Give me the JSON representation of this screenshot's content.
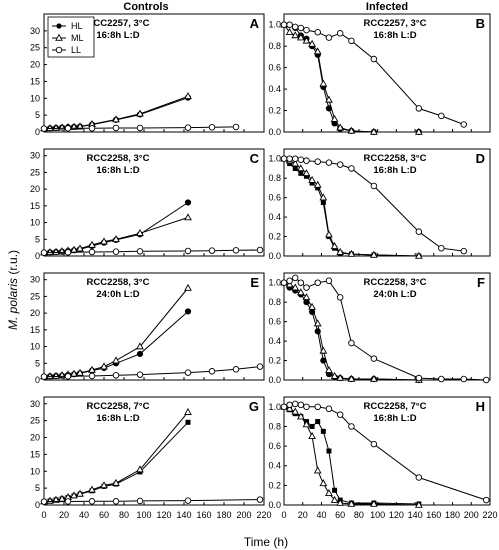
{
  "figure": {
    "col_titles": [
      "Controls",
      "Infected"
    ],
    "ylabel_italic": "M. polaris",
    "ylabel_rest": " (r.u.)",
    "xlabel": "Time (h)",
    "legend": [
      "HL",
      "ML",
      "LL"
    ],
    "x_ticks": [
      0,
      20,
      40,
      60,
      80,
      100,
      120,
      140,
      160,
      180,
      200,
      220
    ],
    "control_ticks": [
      0,
      5,
      10,
      15,
      20,
      25,
      30
    ],
    "infected_ticks": [
      "0.0",
      "0.2",
      "0.4",
      "0.6",
      "0.8",
      "1.0"
    ]
  },
  "chart_data": [
    {
      "type": "line",
      "panel": "A",
      "title_line1": "RCC2257, 3°C",
      "title_line2": "16:8h L:D",
      "xlim": [
        0,
        220
      ],
      "ylim": [
        0,
        35
      ],
      "series": [
        {
          "name": "HL",
          "marker": "filled-circle",
          "x": [
            0,
            6,
            12,
            18,
            24,
            30,
            36,
            48,
            72,
            96,
            144
          ],
          "y": [
            1,
            1.1,
            1.2,
            1.3,
            1.4,
            1.5,
            1.6,
            2.2,
            3.6,
            5.2,
            10.2
          ]
        },
        {
          "name": "ML",
          "marker": "open-triangle",
          "x": [
            0,
            6,
            12,
            18,
            24,
            30,
            36,
            48,
            72,
            96,
            144
          ],
          "y": [
            1,
            1.1,
            1.2,
            1.3,
            1.4,
            1.5,
            1.6,
            2.3,
            3.7,
            5.4,
            10.6
          ]
        },
        {
          "name": "LL",
          "marker": "open-circle",
          "x": [
            0,
            24,
            48,
            72,
            96,
            144,
            168,
            192
          ],
          "y": [
            1,
            1.1,
            1.1,
            1.2,
            1.2,
            1.3,
            1.4,
            1.5
          ]
        }
      ]
    },
    {
      "type": "line",
      "panel": "B",
      "title_line1": "RCC2257, 3°C",
      "title_line2": "16:8h L:D",
      "xlim": [
        0,
        220
      ],
      "ylim": [
        0,
        1.1
      ],
      "series": [
        {
          "name": "HL",
          "marker": "filled-circle",
          "x": [
            0,
            6,
            12,
            18,
            24,
            30,
            36,
            42,
            48,
            54,
            60,
            72,
            96,
            144
          ],
          "y": [
            1,
            1,
            0.97,
            0.9,
            0.87,
            0.8,
            0.72,
            0.42,
            0.22,
            0.08,
            0.03,
            0.01,
            0,
            0
          ]
        },
        {
          "name": "ML",
          "marker": "open-triangle",
          "x": [
            0,
            6,
            12,
            18,
            24,
            30,
            36,
            42,
            48,
            54,
            60,
            72,
            96,
            144
          ],
          "y": [
            1,
            0.93,
            0.9,
            0.88,
            0.85,
            0.82,
            0.75,
            0.45,
            0.3,
            0.12,
            0.04,
            0.01,
            0,
            0
          ]
        },
        {
          "name": "LL",
          "marker": "open-circle",
          "x": [
            0,
            6,
            12,
            18,
            24,
            36,
            48,
            60,
            72,
            96,
            144,
            168,
            192
          ],
          "y": [
            1,
            1,
            0.98,
            0.97,
            0.95,
            0.93,
            0.88,
            0.92,
            0.85,
            0.68,
            0.22,
            0.15,
            0.07
          ]
        }
      ]
    },
    {
      "type": "line",
      "panel": "C",
      "title_line1": "RCC2258, 3°C",
      "title_line2": "16:8h L:D",
      "xlim": [
        0,
        220
      ],
      "ylim": [
        0,
        32
      ],
      "series": [
        {
          "name": "HL",
          "marker": "filled-circle",
          "x": [
            0,
            6,
            12,
            18,
            24,
            30,
            36,
            48,
            60,
            72,
            96,
            144
          ],
          "y": [
            1,
            1.1,
            1.2,
            1.3,
            1.5,
            1.7,
            2,
            3,
            4,
            4.8,
            6.5,
            16
          ]
        },
        {
          "name": "ML",
          "marker": "open-triangle",
          "x": [
            0,
            6,
            12,
            18,
            24,
            30,
            36,
            48,
            60,
            72,
            96,
            144
          ],
          "y": [
            1,
            1.1,
            1.2,
            1.4,
            1.6,
            1.8,
            2.2,
            3.3,
            4.3,
            5,
            6.8,
            11.5
          ]
        },
        {
          "name": "LL",
          "marker": "open-circle",
          "x": [
            0,
            24,
            48,
            72,
            96,
            144,
            168,
            192,
            216
          ],
          "y": [
            1,
            1.1,
            1.2,
            1.3,
            1.4,
            1.5,
            1.6,
            1.7,
            1.8
          ]
        }
      ]
    },
    {
      "type": "line",
      "panel": "D",
      "title_line1": "RCC2258, 3°C",
      "title_line2": "16:8h L:D",
      "xlim": [
        0,
        220
      ],
      "ylim": [
        0,
        1.1
      ],
      "series": [
        {
          "name": "HL",
          "marker": "filled-square",
          "x": [
            0,
            6,
            12,
            18,
            24,
            30,
            36,
            42,
            48,
            54,
            60,
            72,
            96,
            144
          ],
          "y": [
            1,
            0.95,
            0.9,
            0.85,
            0.82,
            0.75,
            0.7,
            0.55,
            0.2,
            0.08,
            0.03,
            0.02,
            0.01,
            0
          ]
        },
        {
          "name": "ML",
          "marker": "open-triangle",
          "x": [
            0,
            6,
            12,
            18,
            24,
            30,
            36,
            42,
            48,
            54,
            60,
            72,
            96,
            144
          ],
          "y": [
            1,
            0.98,
            0.95,
            0.9,
            0.85,
            0.78,
            0.73,
            0.6,
            0.22,
            0.1,
            0.04,
            0.02,
            0.01,
            0
          ]
        },
        {
          "name": "LL",
          "marker": "open-circle",
          "x": [
            0,
            6,
            12,
            18,
            24,
            36,
            48,
            60,
            72,
            96,
            144,
            168,
            192
          ],
          "y": [
            1,
            1,
            1,
            0.99,
            0.98,
            0.97,
            0.96,
            0.94,
            0.9,
            0.72,
            0.25,
            0.08,
            0.05
          ]
        }
      ]
    },
    {
      "type": "line",
      "panel": "E",
      "title_line1": "RCC2258, 3°C",
      "title_line2": "24:0h L:D",
      "xlim": [
        0,
        220
      ],
      "ylim": [
        0,
        32
      ],
      "series": [
        {
          "name": "HL",
          "marker": "filled-circle",
          "x": [
            0,
            6,
            12,
            18,
            24,
            30,
            36,
            48,
            60,
            72,
            96,
            144
          ],
          "y": [
            1,
            1.1,
            1.2,
            1.3,
            1.5,
            1.7,
            2,
            2.8,
            3.6,
            5,
            7.8,
            20.5
          ]
        },
        {
          "name": "ML",
          "marker": "open-triangle",
          "x": [
            0,
            6,
            12,
            18,
            24,
            30,
            36,
            48,
            60,
            72,
            96,
            144
          ],
          "y": [
            1,
            1.1,
            1.2,
            1.4,
            1.6,
            1.8,
            2.1,
            3,
            4,
            5.8,
            10,
            27.5
          ]
        },
        {
          "name": "LL",
          "marker": "open-circle",
          "x": [
            0,
            24,
            48,
            72,
            96,
            144,
            168,
            192,
            216
          ],
          "y": [
            1,
            1.1,
            1.2,
            1.4,
            1.6,
            2.2,
            2.6,
            3.2,
            4
          ]
        }
      ]
    },
    {
      "type": "line",
      "panel": "F",
      "title_line1": "RCC2258, 3°C",
      "title_line2": "24:0h L:D",
      "xlim": [
        0,
        220
      ],
      "ylim": [
        0,
        1.1
      ],
      "series": [
        {
          "name": "HL",
          "marker": "filled-circle",
          "x": [
            0,
            6,
            12,
            18,
            24,
            30,
            36,
            42,
            48,
            54,
            60,
            72,
            96,
            144
          ],
          "y": [
            1,
            0.95,
            0.92,
            0.88,
            0.8,
            0.7,
            0.5,
            0.2,
            0.06,
            0.03,
            0.02,
            0.01,
            0.01,
            0
          ]
        },
        {
          "name": "ML",
          "marker": "open-triangle",
          "x": [
            0,
            6,
            12,
            18,
            24,
            30,
            36,
            42,
            48,
            54,
            60,
            72,
            96,
            144
          ],
          "y": [
            1,
            0.98,
            0.95,
            0.9,
            0.85,
            0.75,
            0.58,
            0.3,
            0.1,
            0.04,
            0.02,
            0.01,
            0.01,
            0
          ]
        },
        {
          "name": "LL",
          "marker": "open-circle",
          "x": [
            0,
            6,
            12,
            18,
            24,
            36,
            48,
            60,
            72,
            96,
            144,
            168,
            192,
            216
          ],
          "y": [
            1,
            1.02,
            1.05,
            1,
            0.95,
            1,
            1.02,
            0.85,
            0.38,
            0.22,
            0.02,
            0.01,
            0.01,
            0
          ]
        }
      ]
    },
    {
      "type": "line",
      "panel": "G",
      "title_line1": "RCC2258, 7°C",
      "title_line2": "16:8h L:D",
      "xlim": [
        0,
        220
      ],
      "ylim": [
        0,
        32
      ],
      "series": [
        {
          "name": "HL",
          "marker": "filled-square",
          "x": [
            0,
            6,
            12,
            18,
            24,
            30,
            36,
            48,
            60,
            72,
            96,
            144
          ],
          "y": [
            1,
            1.2,
            1.5,
            1.8,
            2.2,
            2.7,
            3.2,
            4.2,
            5.5,
            6.2,
            9.8,
            24.5
          ]
        },
        {
          "name": "ML",
          "marker": "open-triangle",
          "x": [
            0,
            6,
            12,
            18,
            24,
            30,
            36,
            48,
            60,
            72,
            96,
            144
          ],
          "y": [
            1,
            1.2,
            1.5,
            1.8,
            2.3,
            2.8,
            3.3,
            4.5,
            5.8,
            6.5,
            10.5,
            27.5
          ]
        },
        {
          "name": "LL",
          "marker": "open-circle",
          "x": [
            0,
            24,
            48,
            72,
            96,
            144,
            216
          ],
          "y": [
            1,
            1.05,
            1.1,
            1.1,
            1.2,
            1.3,
            1.6
          ]
        }
      ]
    },
    {
      "type": "line",
      "panel": "H",
      "title_line1": "RCC2258, 7°C",
      "title_line2": "16:8h L:D",
      "xlim": [
        0,
        220
      ],
      "ylim": [
        0,
        1.1
      ],
      "series": [
        {
          "name": "HL",
          "marker": "filled-square",
          "x": [
            0,
            6,
            12,
            18,
            24,
            30,
            36,
            42,
            48,
            54,
            60,
            72,
            96,
            144
          ],
          "y": [
            1,
            0.97,
            0.93,
            0.9,
            0.85,
            0.8,
            0.85,
            0.75,
            0.55,
            0.15,
            0.05,
            0.02,
            0.02,
            0.01
          ]
        },
        {
          "name": "ML",
          "marker": "open-triangle",
          "x": [
            0,
            6,
            12,
            18,
            24,
            30,
            36,
            42,
            48,
            54,
            60,
            72,
            96,
            144
          ],
          "y": [
            1,
            0.98,
            0.95,
            0.9,
            0.82,
            0.7,
            0.35,
            0.22,
            0.12,
            0.05,
            0.02,
            0.01,
            0.01,
            0
          ]
        },
        {
          "name": "LL",
          "marker": "open-circle",
          "x": [
            0,
            6,
            12,
            18,
            24,
            36,
            48,
            60,
            72,
            96,
            144,
            216
          ],
          "y": [
            1,
            1.02,
            1.03,
            1.02,
            1,
            1,
            0.98,
            0.92,
            0.8,
            0.62,
            0.28,
            0.05
          ]
        }
      ]
    }
  ]
}
